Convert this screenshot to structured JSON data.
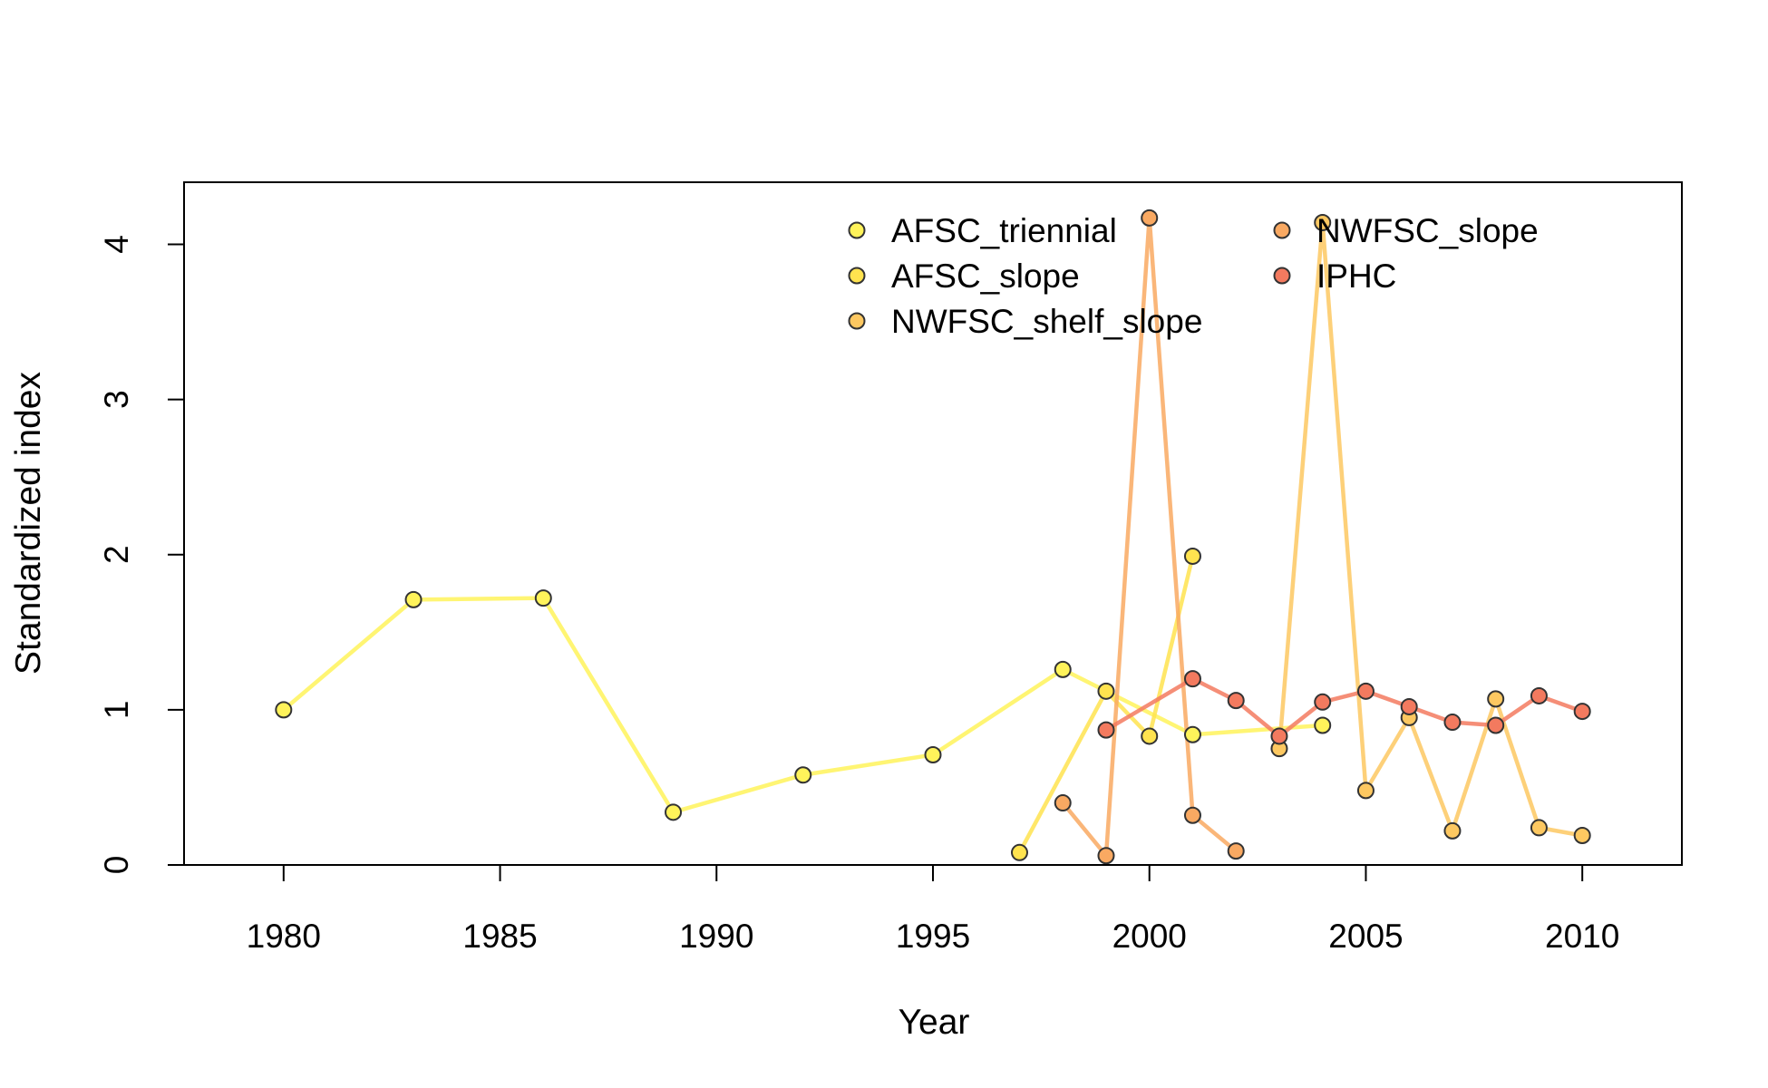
{
  "chart_data": {
    "type": "line",
    "title": "",
    "xlabel": "Year",
    "ylabel": "Standardized index",
    "xlim": [
      1977.7,
      2012.3
    ],
    "ylim": [
      0,
      4.4
    ],
    "x_ticks": [
      1980,
      1985,
      1990,
      1995,
      2000,
      2005,
      2010
    ],
    "y_ticks": [
      0,
      1,
      2,
      3,
      4
    ],
    "grid": false,
    "legend_position": "top-center",
    "series": [
      {
        "name": "AFSC_triennial",
        "color": "#fff35a",
        "x": [
          1980,
          1983,
          1986,
          1989,
          1992,
          1995,
          1998,
          2001,
          2004
        ],
        "y": [
          1.0,
          1.71,
          1.72,
          0.34,
          0.58,
          0.71,
          1.26,
          0.84,
          0.9
        ]
      },
      {
        "name": "AFSC_slope",
        "color": "#ffe34f",
        "x": [
          1997,
          1999,
          2000,
          2001
        ],
        "y": [
          0.08,
          1.12,
          0.83,
          1.99
        ]
      },
      {
        "name": "NWFSC_shelf_slope",
        "color": "#fdc861",
        "x": [
          2003,
          2004,
          2005,
          2006,
          2007,
          2008,
          2009,
          2010
        ],
        "y": [
          0.75,
          4.14,
          0.48,
          0.95,
          0.22,
          1.07,
          0.24,
          0.19
        ]
      },
      {
        "name": "NWFSC_slope",
        "color": "#f9a962",
        "x": [
          1998,
          1999,
          2000,
          2001,
          2002
        ],
        "y": [
          0.4,
          0.06,
          4.17,
          0.32,
          0.09
        ]
      },
      {
        "name": "IPHC",
        "color": "#f37a5f",
        "x": [
          1999,
          2001,
          2002,
          2003,
          2004,
          2005,
          2006,
          2007,
          2008,
          2009,
          2010
        ],
        "y": [
          0.87,
          1.2,
          1.06,
          0.83,
          1.05,
          1.12,
          1.02,
          0.92,
          0.9,
          1.09,
          0.99
        ]
      }
    ]
  }
}
